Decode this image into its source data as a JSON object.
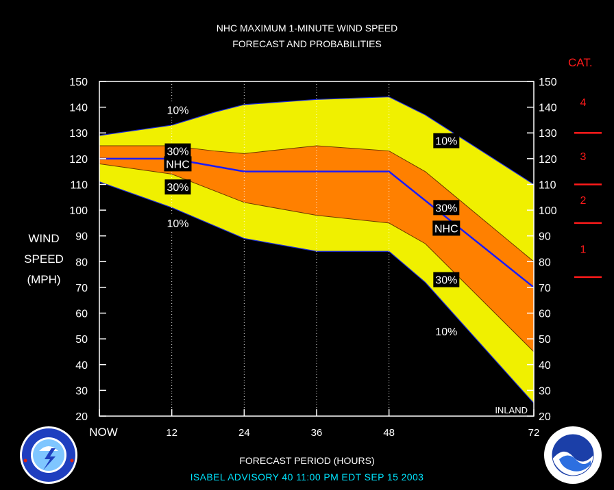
{
  "title_line1": "NHC MAXIMUM 1-MINUTE WIND SPEED",
  "title_line2": "FORECAST AND PROBABILITIES",
  "ylabel_lines": [
    "WIND",
    "SPEED",
    "(MPH)"
  ],
  "xlabel": "FORECAST PERIOD (HOURS)",
  "advisory": "ISABEL   ADVISORY  40  11:00  PM  EDT  SEP  15  2003",
  "cat_title": "CAT.",
  "inland_label": "INLAND",
  "colors": {
    "band_10": "#f0f000",
    "band_30": "#ff8000",
    "nhc_line": "#1a1aff",
    "category": "#ff1a1a",
    "text": "#ffffff",
    "advisory": "#00e5ff"
  },
  "chart_data": {
    "type": "area",
    "x": [
      0,
      12,
      24,
      36,
      48,
      72
    ],
    "x_tick_labels": [
      "NOW",
      "12",
      "24",
      "36",
      "48",
      "72"
    ],
    "xlim": [
      0,
      72
    ],
    "ylim": [
      20,
      150
    ],
    "y_ticks": [
      20,
      30,
      40,
      50,
      60,
      70,
      80,
      90,
      100,
      110,
      120,
      130,
      140,
      150
    ],
    "grid_vertical": [
      12,
      24,
      36,
      48
    ],
    "inland_start": 48,
    "series": [
      {
        "key": "upper10",
        "x": [
          0,
          12,
          19,
          24,
          36,
          48,
          54,
          72
        ],
        "values": [
          129,
          133,
          138,
          141,
          143,
          144,
          137,
          110
        ]
      },
      {
        "key": "upper30",
        "x": [
          0,
          12,
          19,
          24,
          36,
          48,
          54,
          72
        ],
        "values": [
          125,
          125,
          123,
          122,
          125,
          123,
          115,
          80
        ]
      },
      {
        "name": "NHC",
        "key": "nhc",
        "x": [
          0,
          12,
          24,
          36,
          48,
          72
        ],
        "values": [
          120,
          120,
          115,
          115,
          115,
          70
        ]
      },
      {
        "key": "lower30",
        "x": [
          0,
          12,
          24,
          36,
          48,
          54,
          72
        ],
        "values": [
          118,
          114,
          103,
          98,
          95,
          87,
          45
        ]
      },
      {
        "key": "lower10",
        "x": [
          0,
          12,
          24,
          36,
          48,
          54,
          72
        ],
        "values": [
          111,
          101,
          89,
          84,
          84,
          72,
          25
        ]
      }
    ],
    "band_labels": [
      {
        "text": "10%",
        "x": 13,
        "y": 139
      },
      {
        "text": "30%",
        "x": 13,
        "y": 123
      },
      {
        "text": "NHC",
        "x": 13,
        "y": 118
      },
      {
        "text": "30%",
        "x": 13,
        "y": 109
      },
      {
        "text": "10%",
        "x": 13,
        "y": 95
      },
      {
        "text": "10%",
        "x": 57.5,
        "y": 127
      },
      {
        "text": "30%",
        "x": 57.5,
        "y": 101
      },
      {
        "text": "NHC",
        "x": 57.5,
        "y": 93
      },
      {
        "text": "30%",
        "x": 57.5,
        "y": 73
      },
      {
        "text": "10%",
        "x": 57.5,
        "y": 53
      }
    ],
    "categories": [
      {
        "label": "4",
        "label_at": 142
      },
      {
        "label": "3",
        "label_at": 121
      },
      {
        "label": "2",
        "label_at": 104
      },
      {
        "label": "1",
        "label_at": 85
      }
    ],
    "category_boundaries": [
      130,
      110,
      95,
      74
    ]
  }
}
